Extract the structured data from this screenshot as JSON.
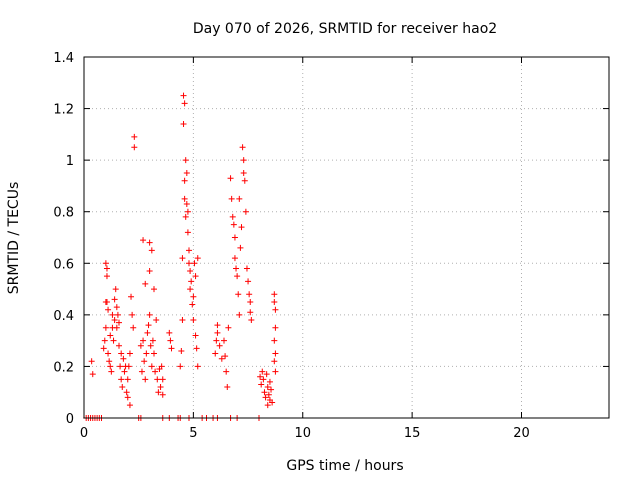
{
  "chart_data": {
    "type": "scatter",
    "title": "Day 070 of 2026, SRMTID for receiver hao2",
    "xlabel": "GPS time / hours",
    "ylabel": "SRMTID / TECUs",
    "xlim": [
      0,
      24
    ],
    "ylim": [
      0,
      1.4
    ],
    "xticks": [
      0,
      5,
      10,
      15,
      20
    ],
    "xtick_labels": [
      "0",
      "5",
      "10",
      "15",
      "20"
    ],
    "yticks": [
      0,
      0.2,
      0.4,
      0.6,
      0.8,
      1.0,
      1.2,
      1.4
    ],
    "ytick_labels": [
      "0",
      "0.2",
      "0.4",
      "0.6",
      "0.8",
      "1",
      "1.2",
      "1.4"
    ],
    "grid": true,
    "marker": "plus",
    "color": "#ff0000",
    "series": [
      {
        "name": "SRMTID",
        "points": [
          [
            0.1,
            0
          ],
          [
            0.2,
            0
          ],
          [
            0.3,
            0
          ],
          [
            0.4,
            0
          ],
          [
            0.5,
            0
          ],
          [
            0.6,
            0
          ],
          [
            0.7,
            0
          ],
          [
            0.8,
            0
          ],
          [
            0.35,
            0.22
          ],
          [
            0.4,
            0.17
          ],
          [
            0.9,
            0.27
          ],
          [
            0.95,
            0.3
          ],
          [
            1.0,
            0.35
          ],
          [
            1.0,
            0.6
          ],
          [
            1.05,
            0.58
          ],
          [
            1.05,
            0.55
          ],
          [
            1.0,
            0.45
          ],
          [
            1.1,
            0.42
          ],
          [
            1.1,
            0.25
          ],
          [
            1.15,
            0.22
          ],
          [
            1.2,
            0.2
          ],
          [
            1.2,
            0.32
          ],
          [
            1.25,
            0.18
          ],
          [
            1.3,
            0.35
          ],
          [
            1.3,
            0.4
          ],
          [
            1.35,
            0.3
          ],
          [
            1.4,
            0.38
          ],
          [
            1.4,
            0.46
          ],
          [
            1.45,
            0.5
          ],
          [
            1.5,
            0.43
          ],
          [
            1.5,
            0.35
          ],
          [
            1.55,
            0.4
          ],
          [
            1.6,
            0.37
          ],
          [
            1.6,
            0.28
          ],
          [
            1.65,
            0.2
          ],
          [
            1.7,
            0.25
          ],
          [
            1.7,
            0.15
          ],
          [
            1.75,
            0.12
          ],
          [
            1.8,
            0.23
          ],
          [
            1.85,
            0.18
          ],
          [
            1.9,
            0.2
          ],
          [
            1.95,
            0.1
          ],
          [
            2.0,
            0.15
          ],
          [
            2.0,
            0.08
          ],
          [
            2.05,
            0.2
          ],
          [
            2.1,
            0.05
          ],
          [
            2.1,
            0.25
          ],
          [
            2.15,
            0.47
          ],
          [
            2.2,
            0.4
          ],
          [
            2.25,
            0.35
          ],
          [
            1.05,
            0.45
          ],
          [
            2.3,
            1.09
          ],
          [
            2.3,
            1.05
          ],
          [
            2.5,
            0
          ],
          [
            2.6,
            0
          ],
          [
            2.6,
            0.28
          ],
          [
            2.65,
            0.18
          ],
          [
            2.7,
            0.3
          ],
          [
            2.7,
            0.69
          ],
          [
            2.75,
            0.22
          ],
          [
            2.8,
            0.15
          ],
          [
            2.8,
            0.52
          ],
          [
            2.85,
            0.25
          ],
          [
            2.9,
            0.33
          ],
          [
            2.95,
            0.36
          ],
          [
            3.0,
            0.68
          ],
          [
            3.0,
            0.57
          ],
          [
            3.0,
            0.4
          ],
          [
            3.05,
            0.28
          ],
          [
            3.1,
            0.65
          ],
          [
            3.1,
            0.2
          ],
          [
            3.15,
            0.3
          ],
          [
            3.2,
            0.25
          ],
          [
            3.25,
            0.18
          ],
          [
            3.3,
            0.38
          ],
          [
            3.35,
            0.15
          ],
          [
            3.4,
            0.1
          ],
          [
            3.45,
            0.19
          ],
          [
            3.5,
            0.12
          ],
          [
            3.55,
            0.2
          ],
          [
            3.6,
            0.15
          ],
          [
            3.6,
            0.09
          ],
          [
            3.2,
            0.5
          ],
          [
            3.6,
            0
          ],
          [
            3.9,
            0
          ],
          [
            3.9,
            0.33
          ],
          [
            3.95,
            0.3
          ],
          [
            4.0,
            0.27
          ],
          [
            4.3,
            0
          ],
          [
            4.4,
            0
          ],
          [
            4.4,
            0.2
          ],
          [
            4.45,
            0.26
          ],
          [
            4.5,
            0.38
          ],
          [
            4.5,
            0.62
          ],
          [
            4.55,
            1.25
          ],
          [
            4.55,
            1.14
          ],
          [
            4.6,
            1.22
          ],
          [
            4.6,
            0.92
          ],
          [
            4.6,
            0.85
          ],
          [
            4.65,
            0.78
          ],
          [
            4.65,
            1.0
          ],
          [
            4.7,
            0.95
          ],
          [
            4.7,
            0.83
          ],
          [
            4.75,
            0.8
          ],
          [
            4.75,
            0.72
          ],
          [
            4.8,
            0.65
          ],
          [
            4.8,
            0.6
          ],
          [
            4.85,
            0.57
          ],
          [
            4.85,
            0.5
          ],
          [
            4.9,
            0.53
          ],
          [
            4.95,
            0.44
          ],
          [
            5.0,
            0.47
          ],
          [
            5.0,
            0.38
          ],
          [
            5.05,
            0.6
          ],
          [
            5.1,
            0.55
          ],
          [
            5.1,
            0.32
          ],
          [
            5.15,
            0.27
          ],
          [
            5.2,
            0.62
          ],
          [
            5.2,
            0.2
          ],
          [
            4.8,
            0
          ],
          [
            5.4,
            0
          ],
          [
            5.6,
            0
          ],
          [
            5.9,
            0
          ],
          [
            6.1,
            0
          ],
          [
            6.0,
            0.25
          ],
          [
            6.05,
            0.3
          ],
          [
            6.1,
            0.36
          ],
          [
            6.1,
            0.33
          ],
          [
            6.2,
            0.28
          ],
          [
            6.3,
            0.23
          ],
          [
            6.4,
            0.3
          ],
          [
            6.45,
            0.24
          ],
          [
            6.5,
            0.18
          ],
          [
            6.55,
            0.12
          ],
          [
            6.6,
            0.35
          ],
          [
            6.7,
            0.93
          ],
          [
            6.75,
            0.85
          ],
          [
            6.8,
            0.78
          ],
          [
            6.85,
            0.75
          ],
          [
            6.9,
            0.7
          ],
          [
            6.9,
            0.62
          ],
          [
            6.95,
            0.58
          ],
          [
            7.0,
            0.55
          ],
          [
            7.05,
            0.48
          ],
          [
            7.1,
            0.4
          ],
          [
            7.1,
            0.85
          ],
          [
            7.15,
            0.66
          ],
          [
            7.2,
            0.74
          ],
          [
            7.25,
            1.05
          ],
          [
            7.3,
            1.0
          ],
          [
            7.3,
            0.95
          ],
          [
            7.35,
            0.92
          ],
          [
            7.4,
            0.8
          ],
          [
            7.45,
            0.58
          ],
          [
            7.5,
            0.53
          ],
          [
            7.55,
            0.48
          ],
          [
            7.6,
            0.45
          ],
          [
            7.6,
            0.41
          ],
          [
            7.65,
            0.38
          ],
          [
            6.7,
            0
          ],
          [
            7.0,
            0
          ],
          [
            8.0,
            0
          ],
          [
            8.05,
            0.16
          ],
          [
            8.1,
            0.13
          ],
          [
            8.15,
            0.18
          ],
          [
            8.2,
            0.15
          ],
          [
            8.25,
            0.1
          ],
          [
            8.3,
            0.08
          ],
          [
            8.35,
            0.17
          ],
          [
            8.4,
            0.12
          ],
          [
            8.4,
            0.05
          ],
          [
            8.45,
            0.09
          ],
          [
            8.5,
            0.07
          ],
          [
            8.5,
            0.14
          ],
          [
            8.55,
            0.11
          ],
          [
            8.6,
            0.06
          ],
          [
            8.7,
            0.48
          ],
          [
            8.7,
            0.45
          ],
          [
            8.75,
            0.42
          ],
          [
            8.75,
            0.35
          ],
          [
            8.7,
            0.3
          ],
          [
            8.75,
            0.25
          ],
          [
            8.7,
            0.22
          ],
          [
            8.75,
            0.18
          ]
        ]
      }
    ]
  }
}
